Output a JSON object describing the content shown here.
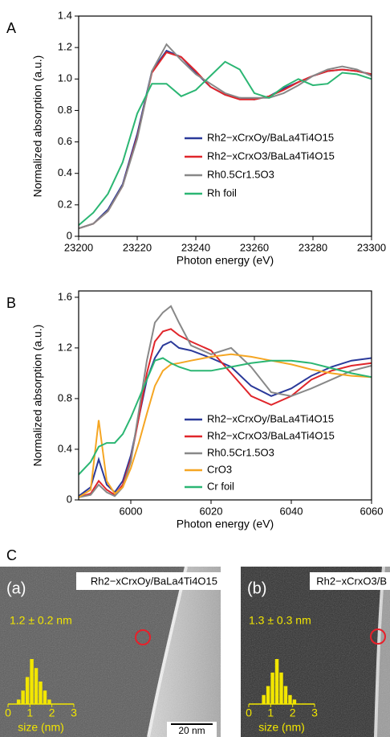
{
  "panel_c_label": "C",
  "chart_data": [
    {
      "type": "line",
      "label": "A",
      "xlabel": "Photon energy (eV)",
      "ylabel": "Normalized absorption (a.u.)",
      "x": [
        23200,
        23205,
        23210,
        23215,
        23220,
        23225,
        23230,
        23235,
        23240,
        23245,
        23250,
        23255,
        23260,
        23265,
        23270,
        23275,
        23280,
        23285,
        23290,
        23295,
        23300
      ],
      "xlim": [
        23200,
        23300
      ],
      "xticks": [
        23200,
        23220,
        23240,
        23260,
        23280,
        23300
      ],
      "ylim": [
        0,
        1.4
      ],
      "yticks": [
        0,
        0.2,
        0.4,
        0.6,
        0.8,
        {
          "value": 1,
          "label": "1.0"
        },
        1.2,
        1.4
      ],
      "series": [
        {
          "name": "Rh2−xCrxOy/BaLa4Ti4O15",
          "color": "#2b3a9a",
          "values": [
            0.05,
            0.08,
            0.17,
            0.33,
            0.65,
            1.05,
            1.18,
            1.14,
            1.04,
            0.95,
            0.9,
            0.88,
            0.87,
            0.89,
            0.94,
            0.98,
            1.02,
            1.05,
            1.06,
            1.05,
            1.03
          ]
        },
        {
          "name": "Rh2−xCrxO3/BaLa4Ti4O15",
          "color": "#e0262b",
          "values": [
            0.05,
            0.08,
            0.16,
            0.32,
            0.63,
            1.04,
            1.17,
            1.14,
            1.05,
            0.95,
            0.9,
            0.87,
            0.87,
            0.89,
            0.93,
            0.98,
            1.02,
            1.05,
            1.06,
            1.05,
            1.03
          ]
        },
        {
          "name": "Rh0.5Cr1.5O3",
          "color": "#888888",
          "values": [
            0.05,
            0.08,
            0.16,
            0.32,
            0.62,
            1.05,
            1.22,
            1.12,
            1.03,
            0.97,
            0.91,
            0.88,
            0.88,
            0.88,
            0.91,
            0.96,
            1.02,
            1.06,
            1.08,
            1.06,
            1.02
          ]
        },
        {
          "name": "Rh foil",
          "color": "#2bb673",
          "values": [
            0.07,
            0.15,
            0.27,
            0.47,
            0.78,
            0.97,
            0.97,
            0.89,
            0.93,
            1.02,
            1.11,
            1.06,
            0.91,
            0.88,
            0.95,
            1.0,
            0.96,
            0.97,
            1.04,
            1.03,
            1.0
          ]
        }
      ]
    },
    {
      "type": "line",
      "label": "B",
      "xlabel": "Photon energy (eV)",
      "ylabel": "Normalized absorption (a.u.)",
      "x": [
        5987,
        5990,
        5992,
        5994,
        5996,
        5998,
        6000,
        6002,
        6004,
        6006,
        6008,
        6010,
        6012,
        6015,
        6020,
        6025,
        6030,
        6035,
        6040,
        6045,
        6050,
        6055,
        6060
      ],
      "xlim": [
        5987,
        6060
      ],
      "xticks": [
        6000,
        6020,
        6040,
        6060
      ],
      "ylim": [
        0,
        1.65
      ],
      "yticks": [
        0,
        0.4,
        0.8,
        1.2,
        1.6
      ],
      "series": [
        {
          "name": "Rh2−xCrxOy/BaLa4Ti4O15",
          "color": "#2b3a9a",
          "values": [
            0.03,
            0.1,
            0.32,
            0.12,
            0.06,
            0.15,
            0.35,
            0.65,
            0.95,
            1.12,
            1.22,
            1.25,
            1.2,
            1.18,
            1.12,
            1.05,
            0.9,
            0.82,
            0.88,
            0.98,
            1.05,
            1.1,
            1.12
          ]
        },
        {
          "name": "Rh2−xCrxO3/BaLa4Ti4O15",
          "color": "#e0262b",
          "values": [
            0.02,
            0.05,
            0.15,
            0.08,
            0.04,
            0.12,
            0.32,
            0.65,
            1.0,
            1.25,
            1.33,
            1.35,
            1.3,
            1.25,
            1.18,
            1.0,
            0.82,
            0.75,
            0.82,
            0.95,
            1.02,
            1.06,
            1.08
          ]
        },
        {
          "name": "Rh0.5Cr1.5O3",
          "color": "#888888",
          "values": [
            0.02,
            0.04,
            0.12,
            0.06,
            0.03,
            0.1,
            0.3,
            0.7,
            1.1,
            1.4,
            1.48,
            1.53,
            1.4,
            1.22,
            1.15,
            1.2,
            1.05,
            0.85,
            0.82,
            0.88,
            0.95,
            1.02,
            1.06
          ]
        },
        {
          "name": "CrO3",
          "color": "#f5a623",
          "values": [
            0.02,
            0.08,
            0.63,
            0.15,
            0.05,
            0.1,
            0.25,
            0.45,
            0.68,
            0.9,
            1.02,
            1.07,
            1.08,
            1.1,
            1.13,
            1.15,
            1.13,
            1.1,
            1.07,
            1.03,
            1.0,
            0.98,
            0.97
          ]
        },
        {
          "name": "Cr foil",
          "color": "#2bb673",
          "values": [
            0.2,
            0.3,
            0.42,
            0.45,
            0.45,
            0.52,
            0.65,
            0.8,
            0.95,
            1.1,
            1.12,
            1.08,
            1.05,
            1.02,
            1.02,
            1.05,
            1.08,
            1.1,
            1.1,
            1.08,
            1.04,
            1.0,
            0.97
          ]
        }
      ]
    },
    {
      "type": "histogram",
      "label": "(a)",
      "sample": "Rh2−xCrxOy/BaLa4Ti4O15",
      "annotation": "1.2 ± 0.2 nm",
      "xlabel": "size (nm)",
      "scale_bar": "20 nm",
      "bins": [
        0.4,
        0.6,
        0.8,
        1.0,
        1.2,
        1.4,
        1.6,
        1.8,
        2.0
      ],
      "counts": [
        1,
        3,
        6,
        10,
        8,
        5,
        3,
        1
      ],
      "color": "#f2e600",
      "xlim": [
        0,
        3
      ],
      "xticks": [
        0,
        1,
        2,
        3
      ]
    },
    {
      "type": "histogram",
      "label": "(b)",
      "sample": "Rh2−xCrxO3/B",
      "annotation": "1.3 ± 0.3 nm",
      "xlabel": "size (nm)",
      "bins": [
        0.6,
        0.8,
        1.0,
        1.2,
        1.4,
        1.6,
        1.8,
        2.0,
        2.2
      ],
      "counts": [
        2,
        4,
        7,
        10,
        7,
        4,
        2,
        1
      ],
      "color": "#f2e600",
      "xlim": [
        0,
        3
      ],
      "xticks": [
        0,
        1,
        2,
        3
      ]
    }
  ]
}
